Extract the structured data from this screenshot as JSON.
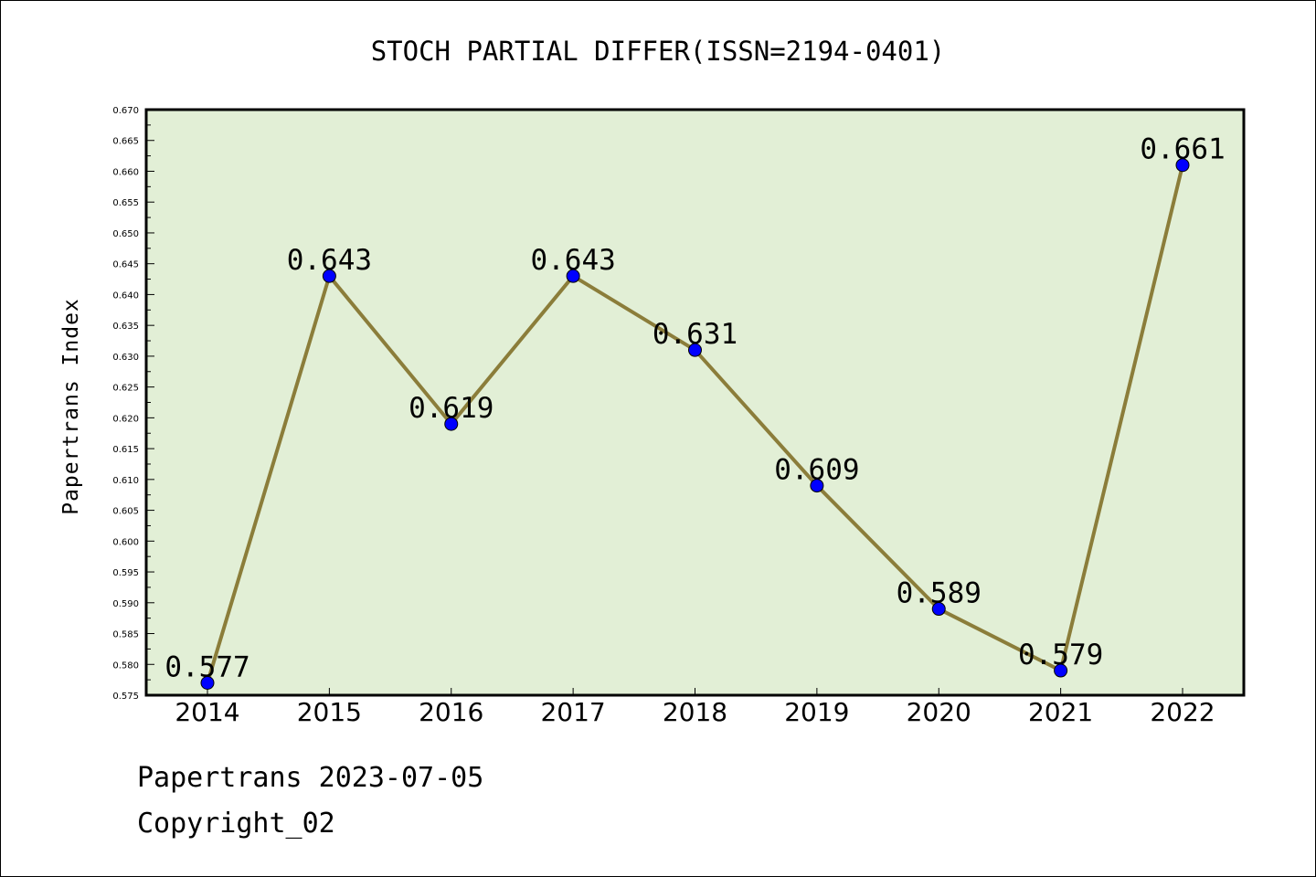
{
  "chart_data": {
    "type": "line",
    "title": "STOCH PARTIAL DIFFER(ISSN=2194-0401)",
    "xlabel": "",
    "ylabel": "Papertrans Index",
    "categories": [
      "2014",
      "2015",
      "2016",
      "2017",
      "2018",
      "2019",
      "2020",
      "2021",
      "2022"
    ],
    "series": [
      {
        "values": [
          0.577,
          0.643,
          0.619,
          0.643,
          0.631,
          0.609,
          0.589,
          0.579,
          0.661
        ]
      }
    ],
    "data_labels": [
      "0.577",
      "0.643",
      "0.619",
      "0.643",
      "0.631",
      "0.609",
      "0.589",
      "0.579",
      "0.661"
    ],
    "ylim": [
      0.575,
      0.67
    ],
    "yticks": [
      "0.575",
      "0.580",
      "0.585",
      "0.590",
      "0.595",
      "0.600",
      "0.605",
      "0.610",
      "0.615",
      "0.620",
      "0.625",
      "0.630",
      "0.635",
      "0.640",
      "0.645",
      "0.650",
      "0.655",
      "0.660",
      "0.665",
      "0.670"
    ],
    "grid": false,
    "legend": "none",
    "colors": {
      "plot_background": "#e2efd6",
      "line": "#8b7d3a",
      "marker": "#0000ff",
      "text": "#000000"
    }
  },
  "footer": {
    "date_line": "Papertrans 2023-07-05",
    "copyright": "Copyright_02"
  }
}
